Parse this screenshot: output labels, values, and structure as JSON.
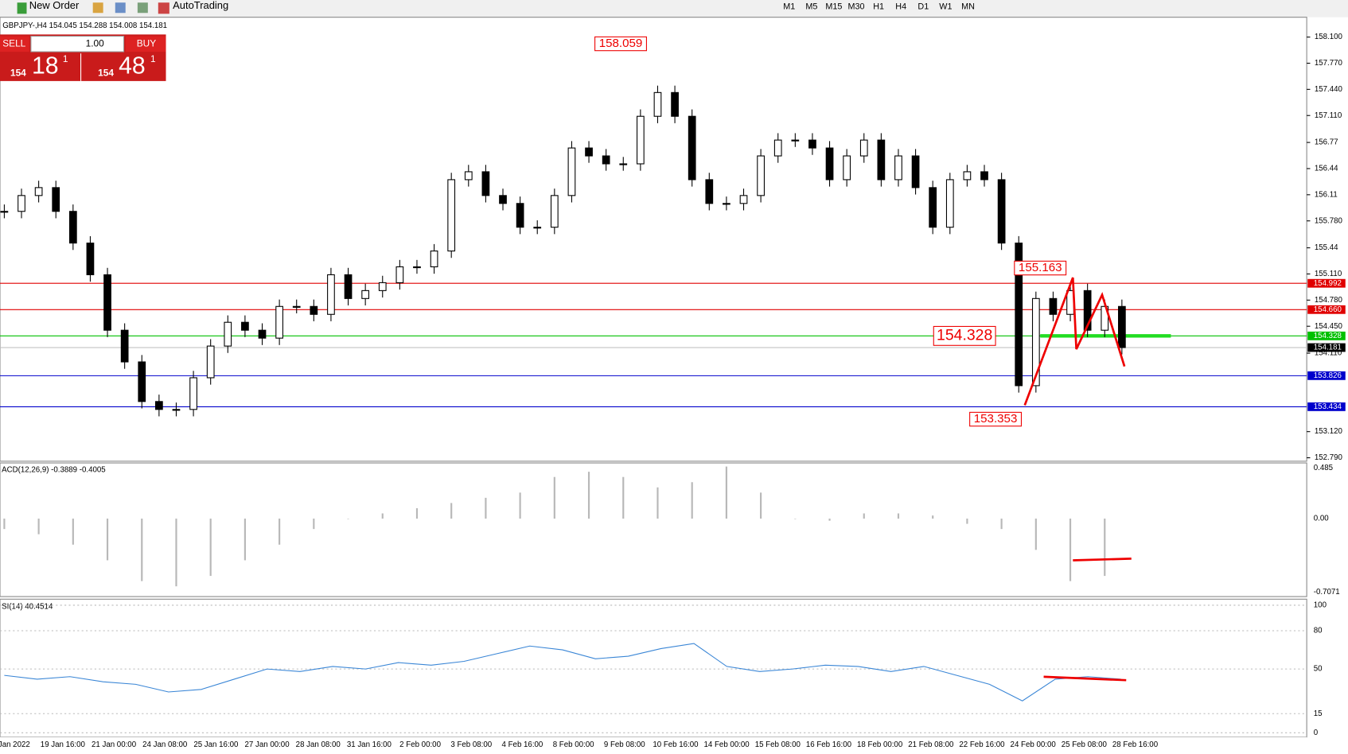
{
  "toolbar": {
    "new_order": "New Order",
    "auto_trading": "AutoTrading",
    "timeframes": [
      "M1",
      "M5",
      "M15",
      "M30",
      "H1",
      "H4",
      "D1",
      "W1",
      "MN"
    ]
  },
  "symbol_info": "GBPJPY-,H4  154.045 154.288 154.008 154.181",
  "trade_panel": {
    "sell": "SELL",
    "buy": "BUY",
    "lots": "1.00",
    "sell_price": {
      "prefix": "154",
      "big": "18",
      "sup": "1"
    },
    "buy_price": {
      "prefix": "154",
      "big": "48",
      "sup": "1"
    }
  },
  "price_axis": {
    "ylim": [
      152.79,
      158.1
    ],
    "yticks": [
      {
        "value": 158.1,
        "label": "158.100"
      },
      {
        "value": 157.77,
        "label": "157.770"
      },
      {
        "value": 157.44,
        "label": "157.440"
      },
      {
        "value": 157.11,
        "label": "157.110"
      },
      156.77,
      156.44,
      156.11,
      {
        "value": 155.78,
        "label": "155.780"
      },
      155.44,
      {
        "value": 155.11,
        "label": "155.110"
      },
      {
        "value": 154.78,
        "label": "154.780"
      },
      {
        "value": 154.45,
        "label": "154.450"
      },
      {
        "value": 154.11,
        "label": "154.110"
      },
      {
        "value": 153.12,
        "label": "153.120"
      },
      {
        "value": 152.79,
        "label": "152.790"
      }
    ]
  },
  "levels": [
    {
      "value": 154.992,
      "color": "#e00000"
    },
    {
      "value": {
        "value": 154.66,
        "label": "154.660"
      },
      "color": "#e00000"
    },
    {
      "value": 154.328,
      "color": "#00c000"
    },
    {
      "value": 154.181,
      "color": "#000000"
    },
    {
      "value": 153.826,
      "color": "#0000cc"
    },
    {
      "value": 153.434,
      "color": "#0000cc"
    }
  ],
  "price_labels": [
    158.059,
    155.163,
    154.328,
    153.353
  ],
  "closes": [
    155.9,
    156.1,
    156.2,
    155.9,
    155.5,
    155.1,
    154.4,
    154.0,
    153.5,
    153.4,
    153.4,
    153.8,
    154.2,
    154.5,
    154.4,
    154.3,
    154.7,
    154.7,
    154.6,
    155.1,
    154.8,
    154.9,
    155.0,
    155.2,
    155.2,
    155.4,
    156.3,
    156.4,
    156.1,
    156.0,
    155.7,
    155.7,
    156.1,
    156.7,
    156.6,
    156.5,
    156.5,
    157.1,
    157.4,
    157.1,
    156.3,
    156.0,
    156.0,
    156.1,
    156.6,
    156.8,
    156.8,
    156.7,
    156.3,
    156.6,
    156.8,
    156.3,
    156.6,
    156.2,
    155.7,
    156.3,
    156.4,
    156.3,
    155.5,
    153.7,
    154.8,
    154.6,
    154.9,
    154.4,
    154.7,
    154.181
  ],
  "macd": {
    "label": "ACD(12,26,9) -0.3889 -0.4005",
    "ylim": [
      -0.7071,
      0.485
    ],
    "yticks": [
      0.485,
      {
        "value": 0,
        "label": "0.00"
      },
      -0.7071
    ],
    "values": [
      -0.1,
      -0.15,
      -0.25,
      -0.4,
      -0.6,
      -0.65,
      -0.55,
      -0.4,
      -0.25,
      -0.1,
      0.0,
      0.05,
      0.1,
      0.15,
      0.2,
      0.25,
      0.4,
      0.45,
      0.4,
      0.3,
      0.35,
      0.5,
      0.25,
      0.0,
      -0.02,
      0.05,
      0.05,
      0.03,
      -0.05,
      -0.1,
      -0.3,
      -0.6,
      -0.55
    ]
  },
  "rsi": {
    "label": "SI(14) 40.4514",
    "ylim": [
      0,
      100
    ],
    "yticks": [
      100,
      80,
      50,
      15,
      0
    ],
    "values": [
      45,
      42,
      44,
      40,
      38,
      32,
      34,
      42,
      50,
      48,
      52,
      50,
      55,
      53,
      56,
      62,
      68,
      65,
      58,
      60,
      66,
      70,
      52,
      48,
      50,
      53,
      52,
      48,
      52,
      45,
      38,
      25,
      42,
      44,
      42
    ]
  },
  "dates": [
    "Jan 2022",
    "19 Jan 16:00",
    "21 Jan 00:00",
    "24 Jan 08:00",
    "25 Jan 16:00",
    "27 Jan 00:00",
    "28 Jan 08:00",
    "31 Jan 16:00",
    "2 Feb 00:00",
    "3 Feb 08:00",
    "4 Feb 16:00",
    "8 Feb 00:00",
    "9 Feb 08:00",
    "10 Feb 16:00",
    "14 Feb 00:00",
    "15 Feb 08:00",
    "16 Feb 16:00",
    "18 Feb 00:00",
    "21 Feb 08:00",
    "22 Feb 16:00",
    "24 Feb 00:00",
    "25 Feb 08:00",
    "28 Feb 16:00"
  ]
}
